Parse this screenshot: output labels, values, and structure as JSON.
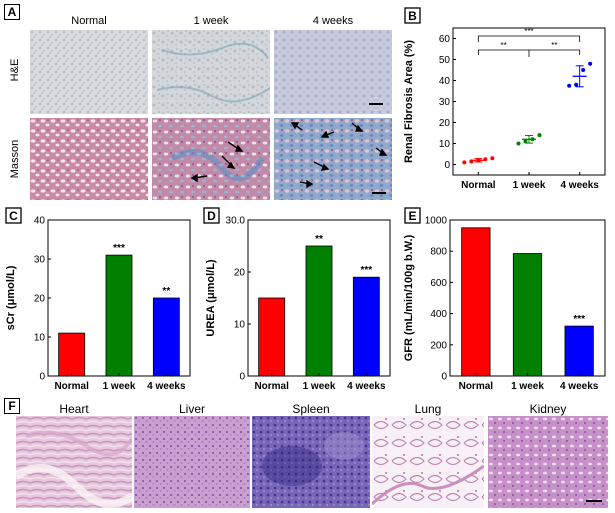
{
  "panel_A": {
    "letter": "A",
    "columns": [
      "Normal",
      "1 week",
      "4 weeks"
    ],
    "rows": [
      "H&E",
      "Masson"
    ]
  },
  "panel_F": {
    "letter": "F",
    "organs": [
      "Heart",
      "Liver",
      "Spleen",
      "Lung",
      "Kidney"
    ]
  },
  "colors": {
    "normal": "#ff0000",
    "week1": "#008000",
    "week4": "#0000ff"
  },
  "chart_data": [
    {
      "id": "B",
      "type": "scatter",
      "letter": "B",
      "categories": [
        "Normal",
        "1 week",
        "4 weeks"
      ],
      "ylabel": "Renal Fibrosis Area (%)",
      "ylim": [
        -5,
        65
      ],
      "yticks": [
        0,
        10,
        20,
        30,
        40,
        50,
        60
      ],
      "series": [
        {
          "category": "Normal",
          "points": [
            1.0,
            1.5,
            2.0,
            2.5,
            3.0
          ],
          "mean": 2.0,
          "err": 0.8
        },
        {
          "category": "1 week",
          "points": [
            10.0,
            11.0,
            12.0,
            14.0
          ],
          "mean": 12.0,
          "err": 1.8
        },
        {
          "category": "4 weeks",
          "points": [
            37.5,
            38.0,
            45.0,
            48.0
          ],
          "mean": 42.0,
          "err": 5.0
        }
      ],
      "significance": [
        {
          "from": 0,
          "to": 2,
          "label": "***"
        },
        {
          "from": 0,
          "to": 1,
          "label": "**"
        },
        {
          "from": 1,
          "to": 2,
          "label": "**"
        }
      ]
    },
    {
      "id": "C",
      "type": "bar",
      "letter": "C",
      "categories": [
        "Normal",
        "1 week",
        "4 weeks"
      ],
      "values": [
        11,
        31,
        20
      ],
      "ylabel": "sCr (μmol/L)",
      "ylim": [
        0,
        40
      ],
      "yticks": [
        0,
        10,
        20,
        30,
        40
      ],
      "significance": [
        "",
        "***",
        "**"
      ]
    },
    {
      "id": "D",
      "type": "bar",
      "letter": "D",
      "categories": [
        "Normal",
        "1 week",
        "4 weeks"
      ],
      "values": [
        15,
        25,
        19
      ],
      "ylabel": "UREA (μmol/L)",
      "ylim": [
        0,
        30
      ],
      "yticks": [
        0,
        10,
        20,
        30
      ],
      "yticklabels": [
        "0",
        "10",
        "20",
        "30.0"
      ],
      "significance": [
        "",
        "**",
        "***"
      ]
    },
    {
      "id": "E",
      "type": "bar",
      "letter": "E",
      "categories": [
        "Normal",
        "1 week",
        "4 weeks"
      ],
      "values": [
        950,
        785,
        320
      ],
      "ylabel": "GFR (mL/min/100g b.W.)",
      "ylim": [
        0,
        1000
      ],
      "yticks": [
        0,
        200,
        400,
        600,
        800,
        1000
      ],
      "significance": [
        "",
        "",
        "***"
      ]
    }
  ]
}
